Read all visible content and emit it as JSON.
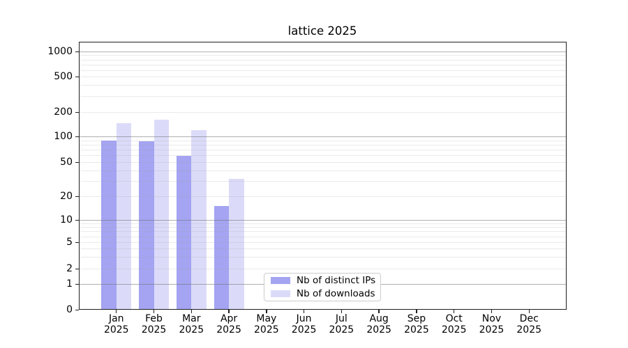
{
  "chart_data": {
    "type": "bar",
    "title": "lattice 2025",
    "categories": [
      "Jan 2025",
      "Feb 2025",
      "Mar 2025",
      "Apr 2025",
      "May 2025",
      "Jun 2025",
      "Jul 2025",
      "Aug 2025",
      "Sep 2025",
      "Oct 2025",
      "Nov 2025",
      "Dec 2025"
    ],
    "series": [
      {
        "name": "Nb of distinct IPs",
        "color": "#a4a4f2",
        "values": [
          90,
          88,
          59,
          15,
          0,
          0,
          0,
          0,
          0,
          0,
          0,
          0
        ]
      },
      {
        "name": "Nb of downloads",
        "color": "#dbdbf9",
        "values": [
          145,
          160,
          120,
          32,
          0,
          0,
          0,
          0,
          0,
          0,
          0,
          0
        ]
      }
    ],
    "yscale": "symlog",
    "yticks": [
      0,
      1,
      2,
      5,
      10,
      20,
      50,
      100,
      200,
      500,
      1000
    ],
    "ylim": [
      0,
      1300
    ],
    "grid": true,
    "legend_position": "lower center inside plot",
    "colors": {
      "major_grid": "#b0b0b0",
      "minor_grid": "#e6e6e6",
      "axis_spine": "#1f1f1f",
      "background": "#ffffff"
    }
  }
}
